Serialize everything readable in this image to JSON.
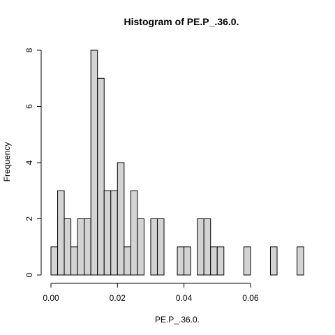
{
  "chart_data": {
    "type": "bar",
    "title": "Histogram of PE.P_.36.0.",
    "xlabel": "PE.P_.36.0.",
    "ylabel": "Frequency",
    "bin_width": 0.002,
    "bins": [
      {
        "start": 0.0,
        "end": 0.002,
        "count": 1
      },
      {
        "start": 0.002,
        "end": 0.004,
        "count": 3
      },
      {
        "start": 0.004,
        "end": 0.006,
        "count": 2
      },
      {
        "start": 0.006,
        "end": 0.008,
        "count": 1
      },
      {
        "start": 0.008,
        "end": 0.01,
        "count": 2
      },
      {
        "start": 0.01,
        "end": 0.012,
        "count": 2
      },
      {
        "start": 0.012,
        "end": 0.014,
        "count": 8
      },
      {
        "start": 0.014,
        "end": 0.016,
        "count": 7
      },
      {
        "start": 0.016,
        "end": 0.018,
        "count": 3
      },
      {
        "start": 0.018,
        "end": 0.02,
        "count": 3
      },
      {
        "start": 0.02,
        "end": 0.022,
        "count": 4
      },
      {
        "start": 0.022,
        "end": 0.024,
        "count": 1
      },
      {
        "start": 0.024,
        "end": 0.026,
        "count": 3
      },
      {
        "start": 0.026,
        "end": 0.028,
        "count": 2
      },
      {
        "start": 0.028,
        "end": 0.03,
        "count": 0
      },
      {
        "start": 0.03,
        "end": 0.032,
        "count": 2
      },
      {
        "start": 0.032,
        "end": 0.034,
        "count": 2
      },
      {
        "start": 0.034,
        "end": 0.036,
        "count": 0
      },
      {
        "start": 0.036,
        "end": 0.038,
        "count": 0
      },
      {
        "start": 0.038,
        "end": 0.04,
        "count": 1
      },
      {
        "start": 0.04,
        "end": 0.042,
        "count": 1
      },
      {
        "start": 0.042,
        "end": 0.044,
        "count": 0
      },
      {
        "start": 0.044,
        "end": 0.046,
        "count": 2
      },
      {
        "start": 0.046,
        "end": 0.048,
        "count": 2
      },
      {
        "start": 0.048,
        "end": 0.05,
        "count": 1
      },
      {
        "start": 0.05,
        "end": 0.052,
        "count": 1
      },
      {
        "start": 0.052,
        "end": 0.054,
        "count": 0
      },
      {
        "start": 0.054,
        "end": 0.056,
        "count": 0
      },
      {
        "start": 0.056,
        "end": 0.058,
        "count": 0
      },
      {
        "start": 0.058,
        "end": 0.06,
        "count": 1
      },
      {
        "start": 0.06,
        "end": 0.062,
        "count": 0
      },
      {
        "start": 0.062,
        "end": 0.064,
        "count": 0
      },
      {
        "start": 0.064,
        "end": 0.066,
        "count": 0
      },
      {
        "start": 0.066,
        "end": 0.068,
        "count": 1
      },
      {
        "start": 0.068,
        "end": 0.07,
        "count": 0
      },
      {
        "start": 0.07,
        "end": 0.072,
        "count": 0
      },
      {
        "start": 0.072,
        "end": 0.074,
        "count": 0
      },
      {
        "start": 0.074,
        "end": 0.076,
        "count": 1
      }
    ],
    "x_ticks": [
      0.0,
      0.02,
      0.04,
      0.06
    ],
    "x_tick_labels": [
      "0.00",
      "0.02",
      "0.04",
      "0.06"
    ],
    "y_ticks": [
      0,
      2,
      4,
      6,
      8
    ],
    "y_tick_labels": [
      "0",
      "2",
      "4",
      "6",
      "8"
    ],
    "xlim": [
      0.0,
      0.076
    ],
    "ylim": [
      0,
      8
    ],
    "grid": false,
    "bar_fill": "#d3d3d3",
    "bar_stroke": "#000000"
  }
}
